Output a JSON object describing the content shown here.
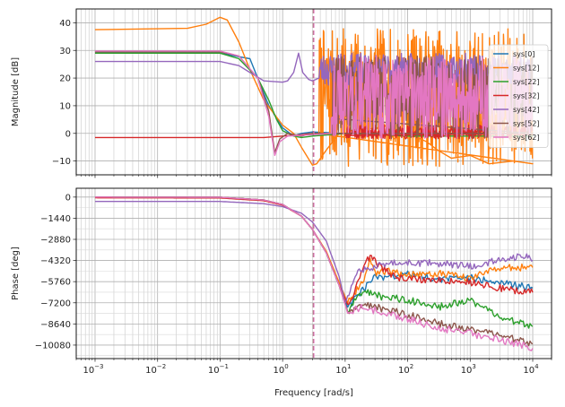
{
  "chart_data": [
    {
      "type": "line",
      "panel": "magnitude",
      "ylabel": "Magnitude [dB]",
      "xlabel": "",
      "x_scale": "log",
      "xlim": [
        0.0005,
        20000
      ],
      "ylim": [
        -15,
        45
      ],
      "y_ticks": [
        -10,
        0,
        10,
        20,
        30,
        40
      ],
      "grid": true,
      "legend_position": "right",
      "vline_x": 3.1,
      "series": [
        {
          "name": "sys[0]",
          "color": "#1f77b4",
          "points": [
            [
              0.001,
              29
            ],
            [
              0.1,
              29
            ],
            [
              0.3,
              27
            ],
            [
              0.6,
              10
            ],
            [
              1,
              2
            ],
            [
              1.5,
              -1
            ],
            [
              2,
              0
            ],
            [
              3,
              0.5
            ],
            [
              10,
              0
            ],
            [
              100,
              0
            ],
            [
              10000,
              0
            ]
          ]
        },
        {
          "name": "sys[12]",
          "color": "#ff7f0e",
          "points": [
            [
              0.001,
              37.5
            ],
            [
              0.03,
              38
            ],
            [
              0.06,
              39.5
            ],
            [
              0.1,
              42
            ],
            [
              0.13,
              41
            ],
            [
              0.2,
              33
            ],
            [
              0.3,
              23
            ],
            [
              0.5,
              12
            ],
            [
              1,
              3
            ],
            [
              1.5,
              0
            ],
            [
              2,
              -5
            ],
            [
              3,
              -11.5
            ],
            [
              3.5,
              -11
            ],
            [
              5,
              -6
            ],
            [
              8,
              0
            ],
            [
              10,
              0
            ],
            [
              20,
              3
            ],
            [
              30,
              1
            ],
            [
              40,
              4
            ],
            [
              60,
              -2
            ],
            [
              100,
              0
            ],
            [
              200,
              -3
            ],
            [
              300,
              -6
            ],
            [
              500,
              -9
            ],
            [
              1000,
              -8
            ],
            [
              2000,
              -11
            ],
            [
              5000,
              -10
            ],
            [
              10000,
              -11
            ]
          ],
          "noise": {
            "from": 3.8,
            "lo": -12,
            "hi": 38,
            "seed": 7
          }
        },
        {
          "name": "sys[22]",
          "color": "#2ca02c",
          "points": [
            [
              0.001,
              29
            ],
            [
              0.1,
              29
            ],
            [
              0.2,
              27
            ],
            [
              0.4,
              20
            ],
            [
              0.6,
              12
            ],
            [
              0.8,
              5
            ],
            [
              1,
              1
            ],
            [
              1.5,
              -1
            ],
            [
              2,
              -1.5
            ],
            [
              3,
              -1
            ],
            [
              10,
              0
            ],
            [
              100,
              -1
            ],
            [
              10000,
              -1
            ]
          ]
        },
        {
          "name": "sys[32]",
          "color": "#d62728",
          "points": [
            [
              0.001,
              -1.5
            ],
            [
              0.5,
              -1.5
            ],
            [
              1,
              -1
            ],
            [
              2,
              -0.5
            ],
            [
              3,
              0
            ],
            [
              10,
              0
            ],
            [
              100,
              0
            ],
            [
              10000,
              0
            ]
          ],
          "noise": {
            "from": 10,
            "lo": -2,
            "hi": 3,
            "seed": 11
          }
        },
        {
          "name": "sys[42]",
          "color": "#9467bd",
          "points": [
            [
              0.001,
              26
            ],
            [
              0.1,
              26
            ],
            [
              0.2,
              24.5
            ],
            [
              0.3,
              22
            ],
            [
              0.5,
              19
            ],
            [
              1,
              18.5
            ],
            [
              1.2,
              19
            ],
            [
              1.5,
              22
            ],
            [
              1.8,
              29
            ],
            [
              2.1,
              22
            ],
            [
              2.6,
              19.5
            ],
            [
              3,
              19
            ],
            [
              3.4,
              19.5
            ],
            [
              3.8,
              20
            ]
          ],
          "noise": {
            "from": 3.8,
            "lo": 17,
            "hi": 29,
            "seed": 23
          }
        },
        {
          "name": "sys[52]",
          "color": "#8c564b",
          "points": [
            [
              0.001,
              29.5
            ],
            [
              0.1,
              29.5
            ],
            [
              0.2,
              28
            ],
            [
              0.4,
              20
            ],
            [
              0.6,
              8
            ],
            [
              0.75,
              -7
            ],
            [
              0.9,
              -2
            ],
            [
              1.2,
              0
            ],
            [
              2,
              -1
            ],
            [
              3,
              0
            ],
            [
              10,
              0
            ],
            [
              10000,
              0
            ]
          ],
          "noise": {
            "from": 6,
            "lo": -2,
            "hi": 28,
            "seed": 31
          }
        },
        {
          "name": "sys[62]",
          "color": "#e377c2",
          "points": [
            [
              0.001,
              29.8
            ],
            [
              0.1,
              29.8
            ],
            [
              0.2,
              28
            ],
            [
              0.4,
              20
            ],
            [
              0.6,
              6
            ],
            [
              0.75,
              -8
            ],
            [
              0.9,
              -3
            ],
            [
              1.2,
              -1
            ],
            [
              3,
              -0.5
            ],
            [
              6,
              0
            ]
          ],
          "noise": {
            "from": 6,
            "lo": -2,
            "hi": 28,
            "seed": 43
          }
        }
      ]
    },
    {
      "type": "line",
      "panel": "phase",
      "ylabel": "Phase [deg]",
      "xlabel": "Frequency [rad/s]",
      "x_scale": "log",
      "xlim": [
        0.0005,
        20000
      ],
      "ylim": [
        -11000,
        600
      ],
      "y_ticks": [
        0,
        -1440,
        -2880,
        -4320,
        -5760,
        -7200,
        -8640,
        -10080
      ],
      "grid": true,
      "vline_x": 3.1,
      "series": [
        {
          "name": "sys[0]",
          "color": "#1f77b4",
          "points": [
            [
              0.001,
              0
            ],
            [
              0.1,
              -10
            ],
            [
              0.5,
              -200
            ],
            [
              1,
              -500
            ],
            [
              2,
              -1300
            ],
            [
              3,
              -2200
            ],
            [
              5,
              -3800
            ],
            [
              8,
              -6000
            ],
            [
              11,
              -7500
            ],
            [
              14,
              -7000
            ],
            [
              20,
              -6200
            ],
            [
              30,
              -5400
            ],
            [
              50,
              -5500
            ],
            [
              100,
              -5200
            ],
            [
              300,
              -5600
            ],
            [
              1000,
              -5500
            ],
            [
              3000,
              -5800
            ],
            [
              10000,
              -6200
            ]
          ]
        },
        {
          "name": "sys[12]",
          "color": "#ff7f0e",
          "points": [
            [
              0.001,
              0
            ],
            [
              0.1,
              -10
            ],
            [
              0.5,
              -200
            ],
            [
              1,
              -500
            ],
            [
              2,
              -1300
            ],
            [
              3,
              -2200
            ],
            [
              5,
              -3700
            ],
            [
              8,
              -5800
            ],
            [
              11,
              -7200
            ],
            [
              14,
              -6500
            ],
            [
              20,
              -5700
            ],
            [
              25,
              -4300
            ],
            [
              30,
              -5200
            ],
            [
              50,
              -5000
            ],
            [
              100,
              -5300
            ],
            [
              300,
              -5200
            ],
            [
              1000,
              -5500
            ],
            [
              3000,
              -4800
            ],
            [
              10000,
              -4800
            ]
          ]
        },
        {
          "name": "sys[22]",
          "color": "#2ca02c",
          "points": [
            [
              0.001,
              0
            ],
            [
              0.1,
              -10
            ],
            [
              0.5,
              -200
            ],
            [
              1,
              -500
            ],
            [
              2,
              -1300
            ],
            [
              3,
              -2200
            ],
            [
              5,
              -3800
            ],
            [
              8,
              -6000
            ],
            [
              11,
              -7800
            ],
            [
              14,
              -7000
            ],
            [
              20,
              -6400
            ],
            [
              40,
              -6800
            ],
            [
              100,
              -7000
            ],
            [
              300,
              -7500
            ],
            [
              1000,
              -7000
            ],
            [
              3000,
              -8200
            ],
            [
              10000,
              -8800
            ]
          ]
        },
        {
          "name": "sys[32]",
          "color": "#d62728",
          "points": [
            [
              0.001,
              -50
            ],
            [
              0.1,
              -60
            ],
            [
              0.5,
              -250
            ],
            [
              1,
              -550
            ],
            [
              2,
              -1300
            ],
            [
              3,
              -2200
            ],
            [
              5,
              -3800
            ],
            [
              8,
              -6000
            ],
            [
              11,
              -7300
            ],
            [
              14,
              -6500
            ],
            [
              20,
              -4600
            ],
            [
              25,
              -4000
            ],
            [
              35,
              -4700
            ],
            [
              60,
              -5400
            ],
            [
              100,
              -5600
            ],
            [
              300,
              -5600
            ],
            [
              1000,
              -5800
            ],
            [
              3000,
              -6200
            ],
            [
              10000,
              -6500
            ]
          ]
        },
        {
          "name": "sys[42]",
          "color": "#9467bd",
          "points": [
            [
              0.001,
              -300
            ],
            [
              0.1,
              -300
            ],
            [
              0.5,
              -450
            ],
            [
              1,
              -650
            ],
            [
              2,
              -1100
            ],
            [
              3,
              -1700
            ],
            [
              5,
              -3000
            ],
            [
              8,
              -5400
            ],
            [
              10,
              -7200
            ],
            [
              12,
              -6400
            ],
            [
              16,
              -5000
            ],
            [
              25,
              -4800
            ],
            [
              50,
              -4500
            ],
            [
              100,
              -4500
            ],
            [
              300,
              -4500
            ],
            [
              1000,
              -4700
            ],
            [
              3000,
              -4300
            ],
            [
              8000,
              -3900
            ],
            [
              10000,
              -4300
            ]
          ]
        },
        {
          "name": "sys[52]",
          "color": "#8c564b",
          "points": [
            [
              0.001,
              0
            ],
            [
              0.1,
              -10
            ],
            [
              0.5,
              -200
            ],
            [
              1,
              -500
            ],
            [
              2,
              -1300
            ],
            [
              3,
              -2200
            ],
            [
              5,
              -3800
            ],
            [
              8,
              -6000
            ],
            [
              11,
              -7800
            ],
            [
              14,
              -7600
            ],
            [
              20,
              -7300
            ],
            [
              40,
              -7600
            ],
            [
              100,
              -8000
            ],
            [
              300,
              -8600
            ],
            [
              1000,
              -9000
            ],
            [
              3000,
              -9400
            ],
            [
              10000,
              -10000
            ]
          ]
        },
        {
          "name": "sys[62]",
          "color": "#e377c2",
          "points": [
            [
              0.001,
              0
            ],
            [
              0.1,
              -10
            ],
            [
              0.5,
              -200
            ],
            [
              1,
              -500
            ],
            [
              2,
              -1300
            ],
            [
              3,
              -2200
            ],
            [
              5,
              -3800
            ],
            [
              8,
              -6000
            ],
            [
              11,
              -7900
            ],
            [
              14,
              -7700
            ],
            [
              20,
              -7500
            ],
            [
              40,
              -7900
            ],
            [
              100,
              -8300
            ],
            [
              300,
              -8900
            ],
            [
              1000,
              -9300
            ],
            [
              3000,
              -9700
            ],
            [
              10000,
              -10300
            ]
          ]
        }
      ]
    }
  ],
  "legend": [
    "sys[0]",
    "sys[12]",
    "sys[22]",
    "sys[32]",
    "sys[42]",
    "sys[52]",
    "sys[62]"
  ],
  "x_tick_labels": [
    {
      "exp": -3,
      "text": "10",
      "sup": "−3"
    },
    {
      "exp": -2,
      "text": "10",
      "sup": "−2"
    },
    {
      "exp": -1,
      "text": "10",
      "sup": "−1"
    },
    {
      "exp": 0,
      "text": "10",
      "sup": "0"
    },
    {
      "exp": 1,
      "text": "10",
      "sup": "1"
    },
    {
      "exp": 2,
      "text": "10",
      "sup": "2"
    },
    {
      "exp": 3,
      "text": "10",
      "sup": "3"
    },
    {
      "exp": 4,
      "text": "10",
      "sup": "4"
    }
  ],
  "y_tick_text_mag": [
    "−10",
    "0",
    "10",
    "20",
    "30",
    "40"
  ],
  "y_tick_text_phase": [
    "0",
    "−1440",
    "−2880",
    "−4320",
    "−5760",
    "−7200",
    "−8640",
    "−10080"
  ]
}
